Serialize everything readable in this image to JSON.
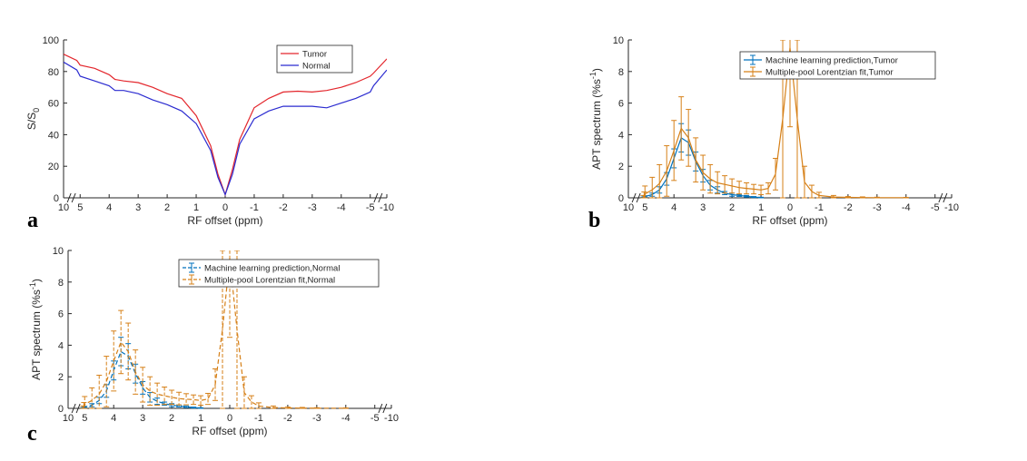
{
  "chart_data": [
    {
      "id": "a",
      "panel_label": "a",
      "type": "line",
      "xlabel": "RF offset (ppm)",
      "ylabel_main": "S/S",
      "ylabel_sub": "0",
      "xlim": [
        10,
        -10
      ],
      "ylim": [
        0,
        100
      ],
      "xticks": [
        "10",
        "5",
        "4",
        "3",
        "2",
        "1",
        "0",
        "-1",
        "-2",
        "-3",
        "-4",
        "-5",
        "-10"
      ],
      "yticks": [
        "0",
        "20",
        "40",
        "60",
        "80",
        "100"
      ],
      "legend": [
        "Tumor",
        "Normal"
      ],
      "legend_position": "top-right",
      "series": [
        {
          "name": "Tumor",
          "color": "#e3262c",
          "x": [
            10,
            6,
            5,
            4.5,
            4,
            3.8,
            3.5,
            3,
            2.5,
            2,
            1.5,
            1,
            0.5,
            0.25,
            0,
            -0.25,
            -0.5,
            -1,
            -1.5,
            -2,
            -2.5,
            -3,
            -3.5,
            -4,
            -4.5,
            -5,
            -6,
            -10
          ],
          "y": [
            91,
            87,
            84,
            82,
            78,
            75,
            74,
            73,
            70,
            66,
            63,
            52,
            33,
            15,
            2,
            18,
            37,
            57,
            63,
            67,
            67.5,
            67,
            68,
            70,
            73,
            77,
            79,
            88
          ]
        },
        {
          "name": "Normal",
          "color": "#2b2bd0",
          "x": [
            10,
            6,
            5,
            4.5,
            4,
            3.8,
            3.5,
            3,
            2.5,
            2,
            1.5,
            1,
            0.5,
            0.25,
            0,
            -0.25,
            -0.5,
            -1,
            -1.5,
            -2,
            -2.5,
            -3,
            -3.5,
            -4,
            -4.5,
            -5,
            -6,
            -10
          ],
          "y": [
            86,
            81,
            77,
            74,
            71,
            68,
            68,
            66,
            62,
            59,
            55,
            47,
            30,
            13,
            2,
            15,
            34,
            50,
            55,
            58,
            58,
            58,
            57,
            60,
            63,
            67,
            71,
            81
          ]
        }
      ]
    },
    {
      "id": "b",
      "panel_label": "b",
      "type": "line",
      "xlabel": "RF offset (ppm)",
      "ylabel_main": "APT spectrum (%s",
      "ylabel_sup": "-1",
      "ylabel_end": ")",
      "xlim": [
        10,
        -10
      ],
      "ylim": [
        0,
        10
      ],
      "xticks": [
        "10",
        "5",
        "4",
        "3",
        "2",
        "1",
        "0",
        "-1",
        "-2",
        "-3",
        "-4",
        "-5",
        "-10"
      ],
      "yticks": [
        "0",
        "2",
        "4",
        "6",
        "8",
        "10"
      ],
      "legend": [
        "Machine learning prediction,Tumor",
        "Multiple-pool Lorentzian fit,Tumor"
      ],
      "legend_position": "top-right",
      "series": [
        {
          "name": "Machine learning prediction,Tumor",
          "color": "#0072bd",
          "dash": false,
          "x": [
            5.5,
            5.25,
            5,
            4.75,
            4.5,
            4.25,
            4,
            3.75,
            3.5,
            3.25,
            3,
            2.75,
            2.5,
            2.25,
            2,
            1.75,
            1.5,
            1.25,
            1
          ],
          "y": [
            0.02,
            0.03,
            0.08,
            0.2,
            0.5,
            1.2,
            2.5,
            3.8,
            3.5,
            2.3,
            1.4,
            0.8,
            0.5,
            0.3,
            0.2,
            0.15,
            0.1,
            0.05,
            0.02
          ],
          "err": [
            0.02,
            0.03,
            0.05,
            0.1,
            0.2,
            0.4,
            0.6,
            0.9,
            0.8,
            0.6,
            0.4,
            0.3,
            0.2,
            0.1,
            0.1,
            0.06,
            0.05,
            0.03,
            0.02
          ]
        },
        {
          "name": "Multiple-pool Lorentzian fit,Tumor",
          "color": "#d68018",
          "dash": false,
          "x": [
            5.5,
            5.25,
            5,
            4.75,
            4.5,
            4.25,
            4,
            3.75,
            3.5,
            3.25,
            3,
            2.75,
            2.5,
            2.25,
            2,
            1.75,
            1.5,
            1.25,
            1,
            0.75,
            0.5,
            0.25,
            0,
            -0.25,
            -0.5,
            -0.75,
            -1,
            -1.5,
            -2,
            -2.5,
            -3,
            -4
          ],
          "y": [
            0.05,
            0.12,
            0.25,
            0.5,
            0.9,
            1.7,
            3.0,
            4.4,
            3.8,
            2.4,
            1.6,
            1.2,
            0.95,
            0.85,
            0.75,
            0.65,
            0.6,
            0.55,
            0.5,
            0.6,
            1.5,
            5.0,
            9.5,
            5.0,
            1.0,
            0.4,
            0.15,
            0.05,
            0.03,
            0.02,
            0.01,
            0.01
          ],
          "err": [
            0.1,
            0.25,
            0.5,
            0.8,
            1.2,
            1.6,
            1.9,
            2.0,
            1.8,
            1.4,
            1.1,
            0.9,
            0.7,
            0.55,
            0.45,
            0.4,
            0.35,
            0.3,
            0.3,
            0.35,
            1.0,
            5.0,
            5.0,
            5.0,
            1.0,
            0.4,
            0.2,
            0.1,
            0.05,
            0.04,
            0.03,
            0.02
          ]
        }
      ]
    },
    {
      "id": "c",
      "panel_label": "c",
      "type": "line",
      "xlabel": "RF offset (ppm)",
      "ylabel_main": "APT spectrum (%s",
      "ylabel_sup": "-1",
      "ylabel_end": ")",
      "xlim": [
        10,
        -10
      ],
      "ylim": [
        0,
        10
      ],
      "xticks": [
        "10",
        "5",
        "4",
        "3",
        "2",
        "1",
        "0",
        "-1",
        "-2",
        "-3",
        "-4",
        "-5",
        "-10"
      ],
      "yticks": [
        "0",
        "2",
        "4",
        "6",
        "8",
        "10"
      ],
      "legend": [
        "Machine learning prediction,Normal",
        "Multiple-pool Lorentzian fit,Normal"
      ],
      "legend_position": "top-right",
      "series": [
        {
          "name": "Machine learning prediction,Normal",
          "color": "#0072bd",
          "dash": true,
          "x": [
            5.5,
            5.25,
            5,
            4.75,
            4.5,
            4.25,
            4,
            3.75,
            3.5,
            3.25,
            3,
            2.75,
            2.5,
            2.25,
            2,
            1.75,
            1.5,
            1.25,
            1
          ],
          "y": [
            0.02,
            0.03,
            0.08,
            0.2,
            0.5,
            1.1,
            2.4,
            3.6,
            3.3,
            2.2,
            1.3,
            0.7,
            0.45,
            0.3,
            0.2,
            0.15,
            0.1,
            0.05,
            0.02
          ],
          "err": [
            0.02,
            0.03,
            0.05,
            0.1,
            0.2,
            0.4,
            0.6,
            0.9,
            0.8,
            0.6,
            0.4,
            0.3,
            0.2,
            0.1,
            0.1,
            0.06,
            0.05,
            0.03,
            0.02
          ]
        },
        {
          "name": "Multiple-pool Lorentzian fit,Normal",
          "color": "#d68018",
          "dash": true,
          "x": [
            5.5,
            5.25,
            5,
            4.75,
            4.5,
            4.25,
            4,
            3.75,
            3.5,
            3.25,
            3,
            2.75,
            2.5,
            2.25,
            2,
            1.75,
            1.5,
            1.25,
            1,
            0.75,
            0.5,
            0.25,
            0,
            -0.25,
            -0.5,
            -0.75,
            -1,
            -1.5,
            -2,
            -2.5,
            -3,
            -4
          ],
          "y": [
            0.05,
            0.12,
            0.25,
            0.5,
            0.9,
            1.7,
            3.0,
            4.2,
            3.6,
            2.3,
            1.5,
            1.1,
            0.9,
            0.8,
            0.7,
            0.62,
            0.58,
            0.55,
            0.5,
            0.6,
            1.5,
            5.0,
            9.5,
            5.0,
            1.0,
            0.4,
            0.15,
            0.05,
            0.03,
            0.02,
            0.01,
            0.01
          ],
          "err": [
            0.1,
            0.25,
            0.5,
            0.8,
            1.2,
            1.6,
            1.9,
            2.0,
            1.8,
            1.4,
            1.1,
            0.9,
            0.7,
            0.55,
            0.45,
            0.4,
            0.35,
            0.3,
            0.3,
            0.35,
            1.0,
            5.0,
            5.0,
            5.0,
            1.0,
            0.4,
            0.2,
            0.1,
            0.05,
            0.04,
            0.03,
            0.02
          ]
        }
      ]
    }
  ]
}
